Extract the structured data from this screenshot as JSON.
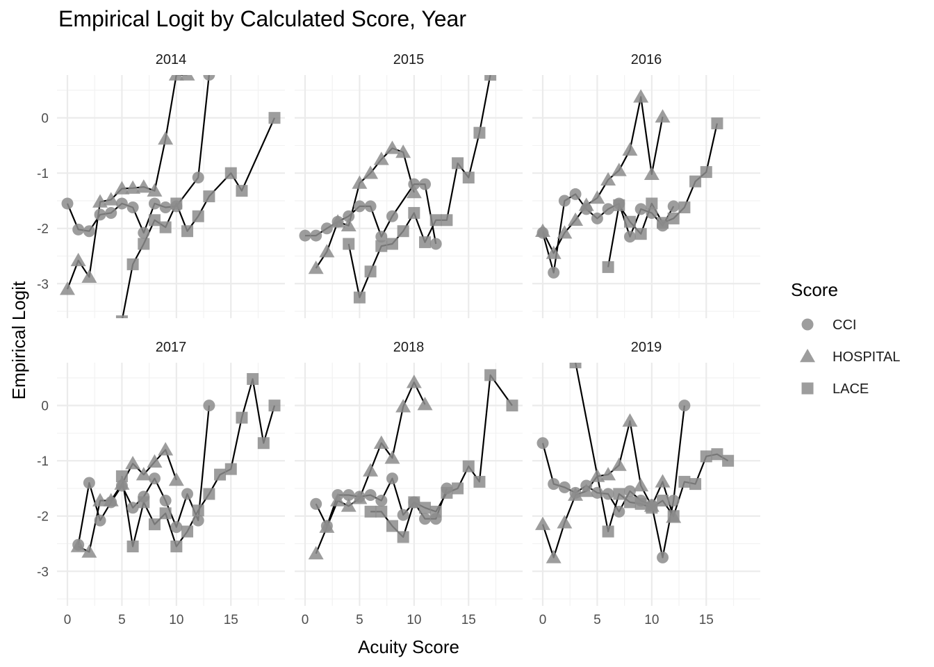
{
  "chart_data": {
    "type": "line",
    "title": "Empirical Logit by Calculated Score, Year",
    "xlabel": "Acuity Score",
    "ylabel": "Empirical Logit",
    "xlim": [
      0,
      19
    ],
    "ylim": [
      -3.6,
      0.75
    ],
    "x_ticks": [
      0,
      5,
      10,
      15
    ],
    "y_ticks": [
      -3,
      -2,
      -1,
      0
    ],
    "grid": true,
    "legend": {
      "title": "Score",
      "position": "right",
      "entries": [
        "CCI",
        "HOSPITAL",
        "LACE"
      ]
    },
    "panels": [
      {
        "label": "2014",
        "series": [
          {
            "name": "CCI",
            "shape": "circle",
            "x": [
              0,
              1,
              2,
              3,
              4,
              5,
              6,
              7,
              8,
              9,
              10,
              12,
              13
            ],
            "y": [
              -1.55,
              -2.02,
              -2.05,
              -1.75,
              -1.72,
              -1.55,
              -1.62,
              -2.08,
              -1.55,
              -1.62,
              -1.6,
              -1.08,
              0.78
            ]
          },
          {
            "name": "HOSPITAL",
            "shape": "triangle",
            "x": [
              0,
              1,
              2,
              3,
              4,
              5,
              6,
              7,
              8,
              9,
              10,
              11
            ],
            "y": [
              -3.1,
              -2.58,
              -2.88,
              -1.52,
              -1.48,
              -1.28,
              -1.27,
              -1.25,
              -1.32,
              -0.38,
              0.78,
              0.78
            ]
          },
          {
            "name": "LACE",
            "shape": "square",
            "x": [
              5,
              6,
              7,
              8,
              9,
              10,
              11,
              12,
              13,
              15,
              16,
              19
            ],
            "y": [
              -3.68,
              -2.65,
              -2.28,
              -1.85,
              -1.98,
              -1.55,
              -2.05,
              -1.78,
              -1.42,
              -1.0,
              -1.32,
              0.0
            ]
          }
        ]
      },
      {
        "label": "2015",
        "series": [
          {
            "name": "CCI",
            "shape": "circle",
            "x": [
              0,
              1,
              2,
              3,
              4,
              5,
              6,
              7,
              8,
              10,
              11,
              12
            ],
            "y": [
              -2.13,
              -2.13,
              -2.0,
              -1.88,
              -1.78,
              -1.6,
              -1.6,
              -2.15,
              -1.78,
              -1.2,
              -1.2,
              -2.28
            ]
          },
          {
            "name": "HOSPITAL",
            "shape": "triangle",
            "x": [
              1,
              2,
              3,
              4,
              5,
              6,
              7,
              8,
              9,
              10
            ],
            "y": [
              -2.72,
              -2.42,
              -1.88,
              -1.95,
              -1.18,
              -1.0,
              -0.75,
              -0.55,
              -0.62,
              -1.35
            ]
          },
          {
            "name": "LACE",
            "shape": "square",
            "x": [
              4,
              5,
              6,
              7,
              8,
              9,
              10,
              11,
              12,
              13,
              14,
              15,
              16,
              17
            ],
            "y": [
              -2.28,
              -3.25,
              -2.78,
              -2.32,
              -2.28,
              -2.05,
              -1.72,
              -2.25,
              -1.85,
              -1.85,
              -0.82,
              -1.08,
              -0.27,
              0.78
            ]
          }
        ]
      },
      {
        "label": "2016",
        "series": [
          {
            "name": "CCI",
            "shape": "circle",
            "x": [
              0,
              1,
              2,
              3,
              4,
              5,
              6,
              7,
              8,
              9,
              10,
              11,
              12
            ],
            "y": [
              -2.08,
              -2.8,
              -1.5,
              -1.38,
              -1.65,
              -1.82,
              -1.65,
              -1.55,
              -2.15,
              -1.65,
              -1.72,
              -1.95,
              -1.6
            ]
          },
          {
            "name": "HOSPITAL",
            "shape": "triangle",
            "x": [
              0,
              1,
              2,
              3,
              4,
              5,
              6,
              7,
              8,
              9,
              10,
              11
            ],
            "y": [
              -2.05,
              -2.45,
              -2.08,
              -1.85,
              -1.58,
              -1.45,
              -1.12,
              -0.95,
              -0.58,
              0.38,
              -1.02,
              0.02
            ]
          },
          {
            "name": "LACE",
            "shape": "square",
            "x": [
              6,
              7,
              8,
              9,
              10,
              11,
              12,
              13,
              14,
              15,
              16
            ],
            "y": [
              -2.7,
              -1.58,
              -1.88,
              -2.1,
              -1.55,
              -1.9,
              -1.82,
              -1.62,
              -1.15,
              -0.98,
              -0.1
            ]
          }
        ]
      },
      {
        "label": "2017",
        "series": [
          {
            "name": "CCI",
            "shape": "circle",
            "x": [
              1,
              2,
              3,
              4,
              5,
              6,
              7,
              8,
              9,
              10,
              11,
              12,
              13
            ],
            "y": [
              -2.52,
              -1.4,
              -2.08,
              -1.75,
              -1.45,
              -1.85,
              -1.65,
              -1.32,
              -1.72,
              -2.2,
              -1.6,
              -2.08,
              0.0
            ]
          },
          {
            "name": "HOSPITAL",
            "shape": "triangle",
            "x": [
              1,
              2,
              3,
              4,
              5,
              6,
              7,
              8,
              9,
              10
            ],
            "y": [
              -2.55,
              -2.65,
              -1.72,
              -1.72,
              -1.42,
              -1.05,
              -1.25,
              -1.02,
              -0.8,
              -1.35
            ]
          },
          {
            "name": "LACE",
            "shape": "square",
            "x": [
              5,
              6,
              7,
              8,
              9,
              10,
              11,
              12,
              13,
              14,
              15,
              16,
              17,
              18,
              19
            ],
            "y": [
              -1.28,
              -2.55,
              -1.75,
              -2.15,
              -1.95,
              -2.55,
              -2.28,
              -1.9,
              -1.6,
              -1.25,
              -1.15,
              -0.22,
              0.48,
              -0.68,
              0.0
            ]
          }
        ]
      },
      {
        "label": "2018",
        "series": [
          {
            "name": "CCI",
            "shape": "circle",
            "x": [
              1,
              2,
              3,
              4,
              5,
              6,
              7,
              8,
              9,
              10,
              11,
              12,
              13
            ],
            "y": [
              -1.78,
              -2.18,
              -1.62,
              -1.62,
              -1.65,
              -1.62,
              -1.72,
              -1.32,
              -1.98,
              -1.75,
              -2.05,
              -2.05,
              -1.5
            ]
          },
          {
            "name": "HOSPITAL",
            "shape": "triangle",
            "x": [
              1,
              2,
              3,
              4,
              5,
              6,
              7,
              8,
              9,
              10,
              11
            ],
            "y": [
              -2.68,
              -2.2,
              -1.72,
              -1.82,
              -1.68,
              -1.18,
              -0.68,
              -0.95,
              -0.02,
              0.42,
              0.02
            ]
          },
          {
            "name": "LACE",
            "shape": "square",
            "x": [
              6,
              7,
              8,
              9,
              10,
              11,
              12,
              13,
              14,
              15,
              16,
              17,
              19
            ],
            "y": [
              -1.92,
              -1.92,
              -2.18,
              -2.38,
              -1.75,
              -1.85,
              -1.92,
              -1.58,
              -1.5,
              -1.1,
              -1.38,
              0.55,
              0.0
            ]
          }
        ]
      },
      {
        "label": "2019",
        "series": [
          {
            "name": "CCI",
            "shape": "circle",
            "x": [
              0,
              1,
              2,
              3,
              4,
              5,
              6,
              7,
              8,
              9,
              10,
              11,
              12,
              13
            ],
            "y": [
              -0.68,
              -1.42,
              -1.48,
              -1.58,
              -1.45,
              -1.58,
              -1.6,
              -1.92,
              -1.55,
              -1.72,
              -1.8,
              -2.75,
              -1.72,
              0.0
            ]
          },
          {
            "name": "HOSPITAL",
            "shape": "triangle",
            "x": [
              0,
              1,
              2,
              3,
              4,
              5,
              6,
              7,
              8,
              9,
              10,
              11,
              12
            ],
            "y": [
              -2.15,
              -2.75,
              -2.12,
              -1.62,
              -1.55,
              -1.28,
              -1.25,
              -1.08,
              -0.28,
              -1.45,
              -1.82,
              -1.38,
              -2.02
            ]
          },
          {
            "name": "LACE",
            "shape": "square",
            "x": [
              3,
              6,
              7,
              8,
              9,
              10,
              11,
              12,
              13,
              14,
              15,
              16,
              17
            ],
            "y": [
              0.78,
              -2.28,
              -1.6,
              -1.75,
              -1.78,
              -1.85,
              -1.72,
              -2.0,
              -1.38,
              -1.42,
              -0.92,
              -0.88,
              -1.0
            ]
          }
        ]
      }
    ]
  }
}
